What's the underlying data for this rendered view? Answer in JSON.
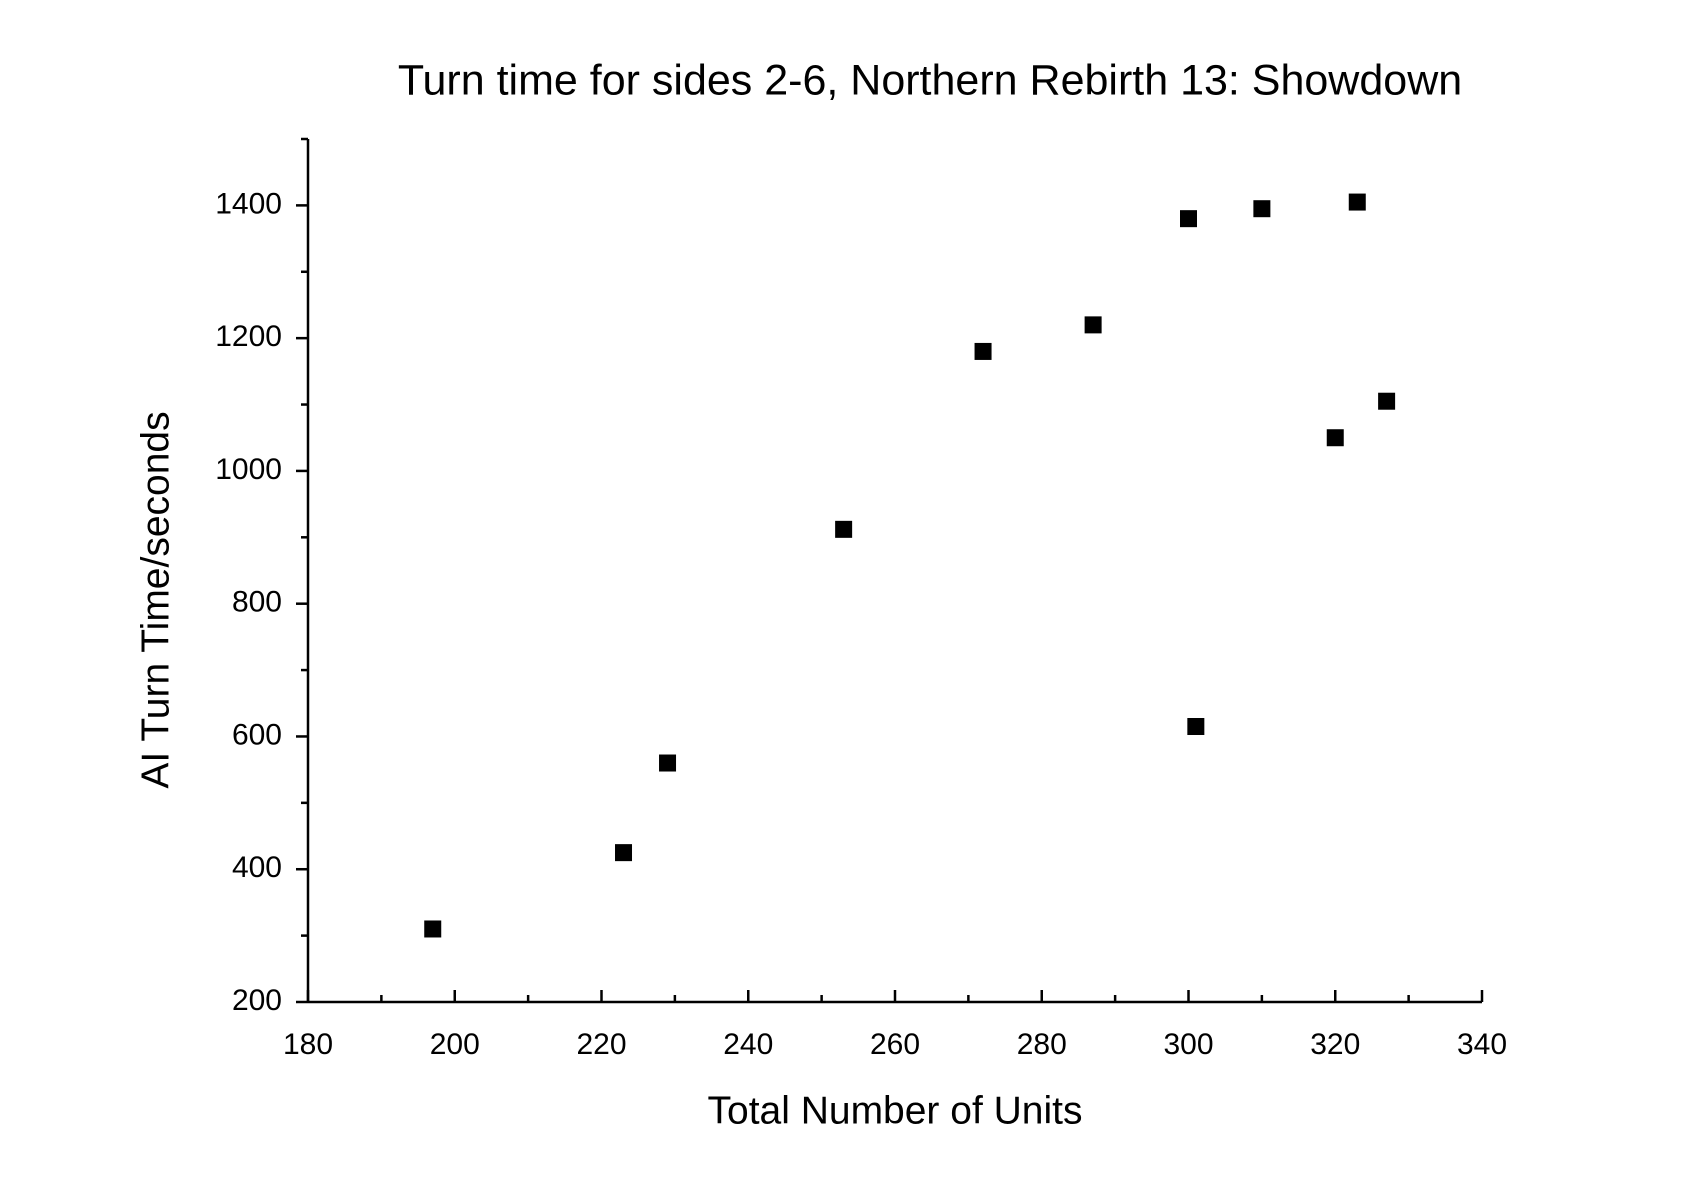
{
  "chart_data": {
    "type": "scatter",
    "title": "Turn time for sides 2-6, Northern Rebirth 13: Showdown",
    "x_label": "Total Number of Units",
    "y_label": "AI Turn Time/seconds",
    "series": [
      {
        "color": "#000000",
        "x": [
          197,
          223,
          229,
          253,
          272,
          287,
          300,
          301,
          310,
          320,
          323,
          327
        ],
        "values": [
          310,
          425,
          560,
          912,
          1180,
          1220,
          1380,
          615,
          1395,
          1050,
          1405,
          1105
        ]
      }
    ],
    "xlim": [
      180,
      340
    ],
    "xticks": [
      180,
      200,
      220,
      240,
      260,
      280,
      300,
      320,
      340
    ],
    "xminorticks": [
      190,
      210,
      230,
      250,
      270,
      290,
      310,
      330
    ],
    "ylim": [
      200,
      1500
    ],
    "yticks": [
      200,
      400,
      600,
      800,
      1000,
      1200,
      1400
    ],
    "yminorticks": [
      300,
      500,
      700,
      900,
      1100,
      1300,
      1500
    ],
    "grid": false
  }
}
